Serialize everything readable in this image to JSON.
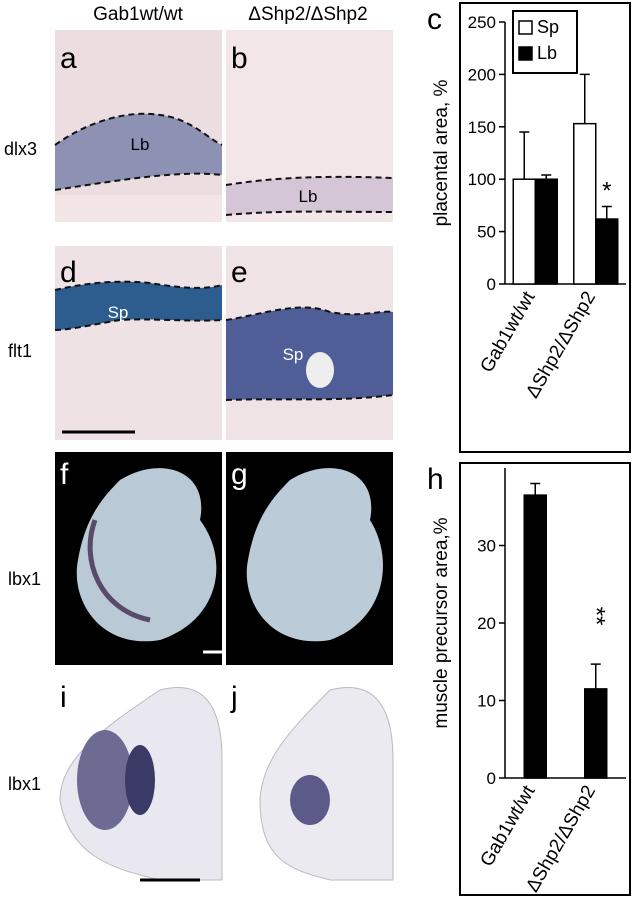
{
  "figure": {
    "columns": [
      "Gab1wt/wt",
      "ΔShp2/ΔShp2"
    ],
    "rows": [
      "dlx3",
      "flt1",
      "lbx1",
      "lbx1"
    ],
    "panels": [
      "a",
      "b",
      "d",
      "e",
      "f",
      "g",
      "i",
      "j"
    ],
    "labels": {
      "a": "Lb",
      "b": "Lb",
      "d": "Sp",
      "e": "Sp"
    }
  },
  "chart_data": [
    {
      "type": "bar",
      "panel": "c",
      "ylabel": "placental area, %",
      "categories": [
        "Gab1wt/wt",
        "ΔShp2/ΔShp2"
      ],
      "series": [
        {
          "name": "Sp",
          "color": "#ffffff",
          "values": [
            100,
            153
          ],
          "errors": [
            45,
            47
          ]
        },
        {
          "name": "Lb",
          "color": "#000000",
          "values": [
            100,
            62
          ],
          "errors": [
            4,
            12
          ]
        }
      ],
      "ylim": [
        0,
        250
      ],
      "yticks": [
        0,
        50,
        100,
        150,
        200,
        250
      ],
      "legend": "top-left",
      "annotation": "*"
    },
    {
      "type": "bar",
      "panel": "h",
      "ylabel": "muscle precursor area,%",
      "categories": [
        "Gab1wt/wt",
        "ΔShp2/ΔShp2"
      ],
      "series": [
        {
          "color": "#000000",
          "values": [
            36.5,
            11.5
          ],
          "errors": [
            1.5,
            3.2
          ]
        }
      ],
      "ylim": [
        0,
        40
      ],
      "yticks": [
        0,
        10,
        20,
        30
      ],
      "annotation": "**"
    }
  ]
}
